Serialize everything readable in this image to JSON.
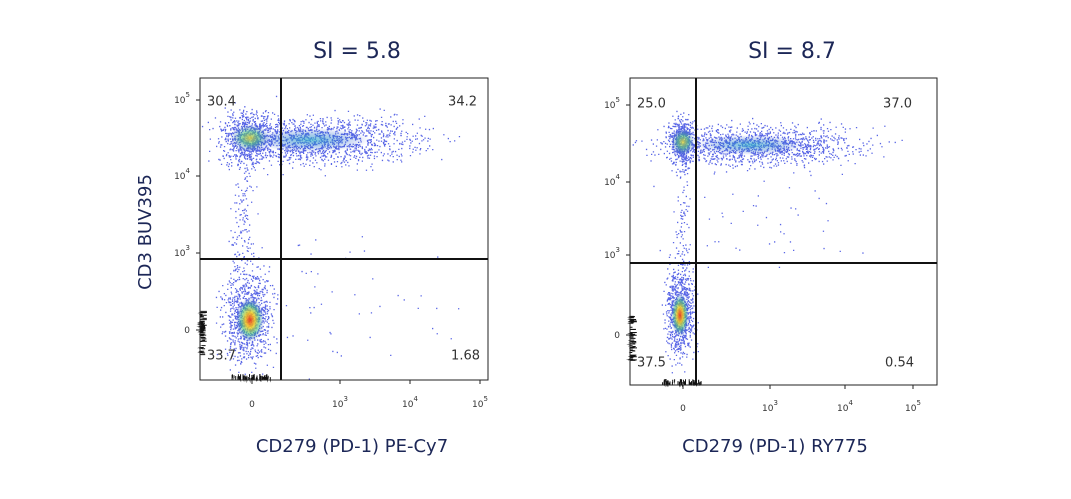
{
  "panels": [
    {
      "title": "SI = 5.8",
      "x_label": "CD279 (PD-1) PE-Cy7",
      "y_label": "CD3 BUV395",
      "y_ticks": [
        {
          "base": "10",
          "exponent": "5"
        },
        {
          "base": "10",
          "exponent": "4"
        },
        {
          "base": "10",
          "exponent": "3"
        },
        {
          "base": "0"
        }
      ],
      "x_ticks": [
        {
          "base": "0"
        },
        {
          "base": "10",
          "exponent": "3"
        },
        {
          "base": "10",
          "exponent": "4"
        },
        {
          "base": "10",
          "exponent": "5"
        }
      ],
      "quadrants": {
        "upper_left": "30.4",
        "upper_right": "34.2",
        "lower_left": "33.7",
        "lower_right": "1.68"
      }
    },
    {
      "title": "SI = 8.7",
      "x_label": "CD279 (PD-1) RY775",
      "y_ticks": [
        {
          "base": "10",
          "exponent": "5"
        },
        {
          "base": "10",
          "exponent": "4"
        },
        {
          "base": "10",
          "exponent": "3"
        },
        {
          "base": "0"
        }
      ],
      "x_ticks": [
        {
          "base": "0"
        },
        {
          "base": "10",
          "exponent": "3"
        },
        {
          "base": "10",
          "exponent": "4"
        },
        {
          "base": "10",
          "exponent": "5"
        }
      ],
      "quadrants": {
        "upper_left": "25.0",
        "upper_right": "37.0",
        "lower_left": "37.5",
        "lower_right": "0.54"
      }
    }
  ]
}
